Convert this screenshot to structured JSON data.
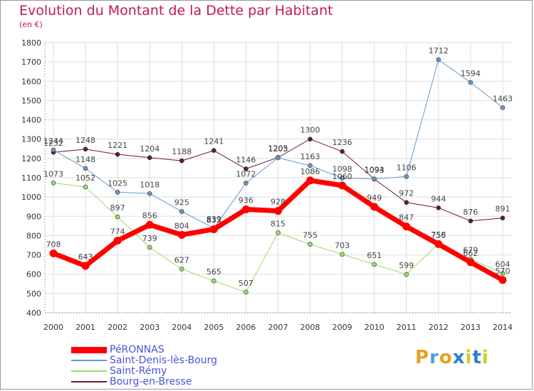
{
  "title": "Evolution du Montant de la Dette par Habitant",
  "subtitle": "(en €)",
  "logo": {
    "text": "Proxiti",
    "colors": [
      "#e8a020",
      "#4aa0d8",
      "#e8a020",
      "#2a7fd0",
      "#c8d020",
      "#2a7fd0",
      "#c8d020"
    ]
  },
  "chart_data": {
    "type": "line",
    "title": "Evolution du Montant de la Dette par Habitant",
    "ylabel": "(en €)",
    "ylim": [
      400,
      1800
    ],
    "yticks": [
      "400",
      "500",
      "600",
      "700",
      "800",
      "900",
      "1000",
      "1100",
      "1200",
      "1300",
      "1400",
      "1500",
      "1600",
      "1700",
      "1800"
    ],
    "x": [
      "2000",
      "2001",
      "2002",
      "2003",
      "2004",
      "2005",
      "2006",
      "2007",
      "2008",
      "2009",
      "2010",
      "2011",
      "2012",
      "2013",
      "2014"
    ],
    "grid": true,
    "legend_position": "bottom-left",
    "series": [
      {
        "name": "Bourg-en-Bresse",
        "color": "#6b1a2a",
        "width": 1,
        "values": [
          1232,
          1248,
          1221,
          1204,
          1188,
          1241,
          1146,
          1205,
          1300,
          1236,
          1093,
          972,
          944,
          876,
          891
        ]
      },
      {
        "name": "Saint-Rémy",
        "color": "#99dd66",
        "width": 1,
        "values": [
          1073,
          1052,
          897,
          739,
          627,
          565,
          507,
          815,
          755,
          703,
          651,
          599,
          758,
          679,
          604
        ]
      },
      {
        "name": "Saint-Denis-lès-Bourg",
        "color": "#6699cc",
        "width": 1,
        "values": [
          1244,
          1148,
          1025,
          1018,
          925,
          839,
          1072,
          1203,
          1163,
          1098,
          1094,
          1106,
          1712,
          1594,
          1463
        ]
      },
      {
        "name": "PéRONNAS",
        "color": "#ff0000",
        "width": 7,
        "values": [
          708,
          643,
          774,
          856,
          804,
          833,
          936,
          928,
          1086,
          1060,
          949,
          847,
          756,
          662,
          570
        ]
      }
    ]
  },
  "legend": [
    {
      "label": "PéRONNAS",
      "color": "#ff0000",
      "thickness": 9
    },
    {
      "label": "Saint-Denis-lès-Bourg",
      "color": "#6699cc",
      "thickness": 2
    },
    {
      "label": "Saint-Rémy",
      "color": "#99dd66",
      "thickness": 2
    },
    {
      "label": "Bourg-en-Bresse",
      "color": "#6b1a2a",
      "thickness": 2
    }
  ]
}
